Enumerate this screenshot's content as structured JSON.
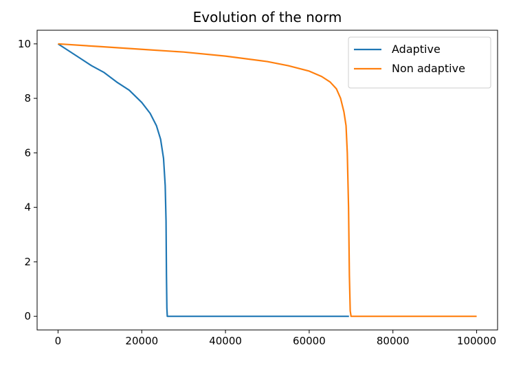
{
  "chart_data": {
    "type": "line",
    "title": "Evolution of the norm",
    "xlabel": "",
    "ylabel": "",
    "xlim": [
      -5000,
      105000
    ],
    "ylim": [
      -0.5,
      10.5
    ],
    "x_ticks": [
      0,
      20000,
      40000,
      60000,
      80000,
      100000
    ],
    "x_tick_labels": [
      "0",
      "20000",
      "40000",
      "60000",
      "80000",
      "100000"
    ],
    "y_ticks": [
      0,
      2,
      4,
      6,
      8,
      10
    ],
    "y_tick_labels": [
      "0",
      "2",
      "4",
      "6",
      "8",
      "10"
    ],
    "grid": false,
    "legend_position": "top-right",
    "series": [
      {
        "name": "Adaptive",
        "color": "#1f77b4",
        "x": [
          0,
          2000,
          5000,
          8000,
          11000,
          14000,
          17000,
          20000,
          22000,
          23500,
          24500,
          25200,
          25600,
          25800,
          25900,
          26000,
          26100,
          30000,
          40000,
          50000,
          60000,
          69500
        ],
        "y": [
          10.0,
          9.8,
          9.5,
          9.2,
          8.95,
          8.6,
          8.3,
          7.85,
          7.45,
          7.0,
          6.5,
          5.8,
          4.8,
          3.5,
          1.5,
          0.3,
          0.0,
          0.0,
          0.0,
          0.0,
          0.0,
          0.0
        ]
      },
      {
        "name": "Non adaptive",
        "color": "#ff7f0e",
        "x": [
          0,
          10000,
          20000,
          30000,
          40000,
          50000,
          55000,
          60000,
          63000,
          65000,
          66500,
          67500,
          68300,
          68800,
          69100,
          69400,
          69600,
          69800,
          70000,
          80000,
          90000,
          100000
        ],
        "y": [
          10.0,
          9.9,
          9.8,
          9.7,
          9.55,
          9.35,
          9.2,
          9.0,
          8.8,
          8.6,
          8.35,
          8.0,
          7.5,
          7.0,
          6.0,
          4.0,
          1.5,
          0.2,
          0.0,
          0.0,
          0.0,
          0.0
        ]
      }
    ]
  }
}
